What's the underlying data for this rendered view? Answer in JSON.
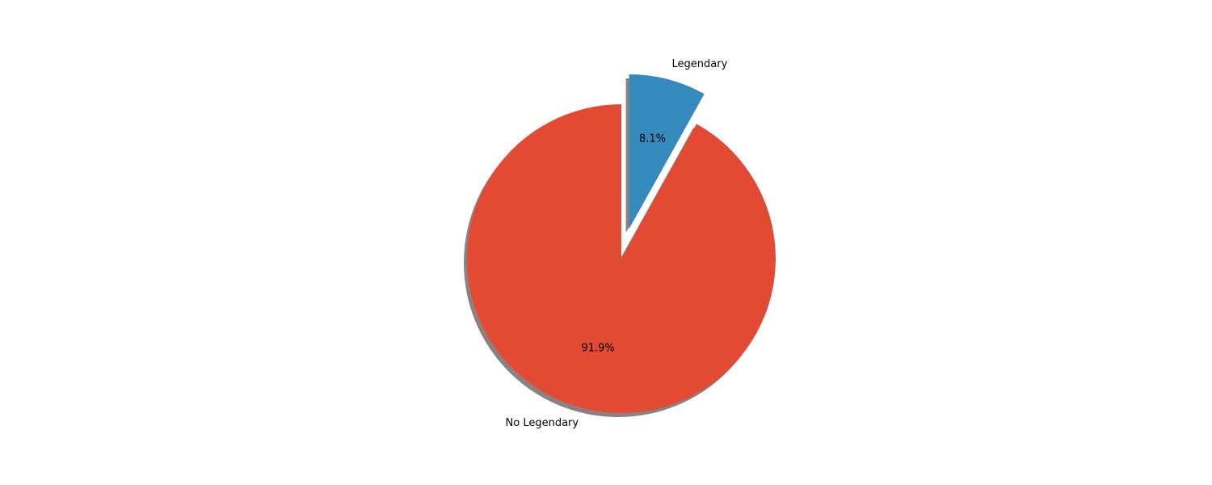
{
  "chart_data": {
    "type": "pie",
    "title": "",
    "start_angle_deg": 90,
    "counterclock": false,
    "shadow": true,
    "slices": [
      {
        "label": "Legendary",
        "value": 8.1,
        "pct_label": "8.1%",
        "color": "#348ABD",
        "explode": 0.2
      },
      {
        "label": "No Legendary",
        "value": 91.9,
        "pct_label": "91.9%",
        "color": "#E24A33",
        "explode": 0.0
      }
    ],
    "shadow_color": "#8c8080"
  }
}
